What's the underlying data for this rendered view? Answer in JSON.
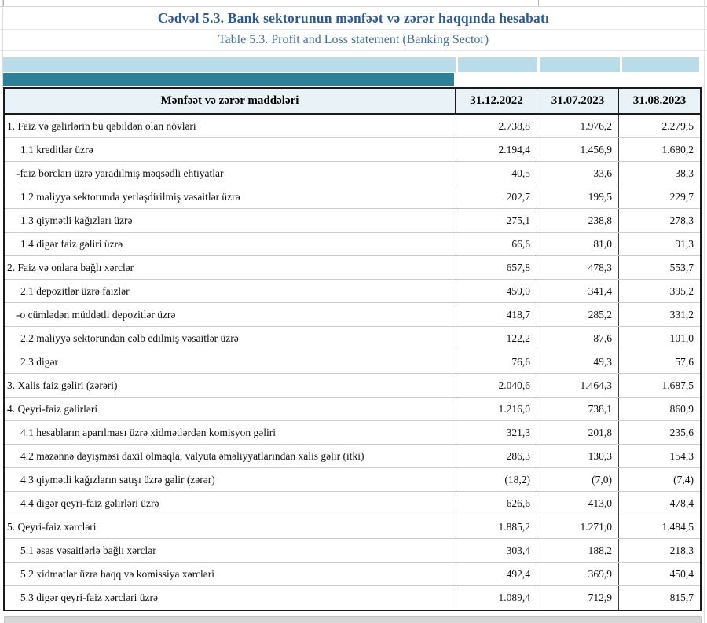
{
  "title": "Cədvəl 5.3. Bank sektorunun mənfəət və zərər haqqında hesabatı",
  "subtitle": "Table 5.3. Profit and Loss statement (Banking Sector)",
  "colors": {
    "title_blue": "#2e5c8e",
    "subtitle_blue": "#41709e",
    "band_light_blue": "#b9dce8",
    "band_teal": "#2e8099",
    "header_bg": "#e9f2f6",
    "scrollbar_gray": "#d7d7d7"
  },
  "table": {
    "header": {
      "label": "Mənfəət və zərər maddələri",
      "columns": [
        "31.12.2022",
        "31.07.2023",
        "31.08.2023"
      ]
    },
    "rows": [
      {
        "label": "1. Faiz və gəlirlərin bu qəbildən olan növləri",
        "indent": "top",
        "values": [
          "2.738,8",
          "1.976,2",
          "2.279,5"
        ]
      },
      {
        "label": "1.1 kreditlər üzrə",
        "indent": "sub",
        "values": [
          "2.194,4",
          "1.456,9",
          "1.680,2"
        ]
      },
      {
        "label": "-faiz borcları üzrə yaradılmış məqsədli ehtiyatlar",
        "indent": "dash",
        "values": [
          "40,5",
          "33,6",
          "38,3"
        ]
      },
      {
        "label": "1.2 maliyyə sektorunda yerləşdirilmiş vəsaitlər üzrə",
        "indent": "sub",
        "values": [
          "202,7",
          "199,5",
          "229,7"
        ]
      },
      {
        "label": "1.3 qiymətli kağızları üzrə",
        "indent": "sub",
        "values": [
          "275,1",
          "238,8",
          "278,3"
        ]
      },
      {
        "label": "1.4 digər faiz gəliri üzrə",
        "indent": "sub",
        "values": [
          "66,6",
          "81,0",
          "91,3"
        ]
      },
      {
        "label": "2. Faiz və onlara bağlı xərclər",
        "indent": "top",
        "values": [
          "657,8",
          "478,3",
          "553,7"
        ]
      },
      {
        "label": "2.1 depozitlər üzrə faizlər",
        "indent": "sub",
        "values": [
          "459,0",
          "341,4",
          "395,2"
        ]
      },
      {
        "label": "-o cümlədən müddətli depozitlər üzrə",
        "indent": "dash",
        "values": [
          "418,7",
          "285,2",
          "331,2"
        ]
      },
      {
        "label": "2.2 maliyyə sektorundan cəlb edilmiş vəsaitlər üzrə",
        "indent": "sub",
        "values": [
          "122,2",
          "87,6",
          "101,0"
        ]
      },
      {
        "label": "2.3 digər",
        "indent": "sub",
        "values": [
          "76,6",
          "49,3",
          "57,6"
        ]
      },
      {
        "label": "3. Xalis faiz gəliri (zərəri)",
        "indent": "top",
        "values": [
          "2.040,6",
          "1.464,3",
          "1.687,5"
        ]
      },
      {
        "label": "4. Qeyri-faiz gəlirləri",
        "indent": "top",
        "values": [
          "1.216,0",
          "738,1",
          "860,9"
        ]
      },
      {
        "label": "4.1 hesabların aparılması üzrə xidmətlərdən komisyon gəliri",
        "indent": "sub",
        "values": [
          "321,3",
          "201,8",
          "235,6"
        ]
      },
      {
        "label": "4.2 məzənnə dəyişməsi daxil olmaqla, valyuta əməliyyatlarından xalis gəlir (itki)",
        "indent": "sub",
        "values": [
          "286,3",
          "130,3",
          "154,3"
        ]
      },
      {
        "label": "4.3 qiymətli kağızların satışı üzrə gəlir (zərər)",
        "indent": "sub",
        "values": [
          "(18,2)",
          "(7,0)",
          "(7,4)"
        ]
      },
      {
        "label": "4.4 digər qeyri-faiz gəlirləri üzrə",
        "indent": "sub",
        "values": [
          "626,6",
          "413,0",
          "478,4"
        ]
      },
      {
        "label": "5. Qeyri-faiz xərcləri",
        "indent": "top",
        "values": [
          "1.885,2",
          "1.271,0",
          "1.484,5"
        ]
      },
      {
        "label": "5.1 əsas vəsaitlərlə bağlı xərclər",
        "indent": "sub",
        "values": [
          "303,4",
          "188,2",
          "218,3"
        ]
      },
      {
        "label": "5.2 xidmətlər üzrə haqq və komissiya xərcləri",
        "indent": "sub",
        "values": [
          "492,4",
          "369,9",
          "450,4"
        ]
      },
      {
        "label": "5.3 digər qeyri-faiz xərcləri üzrə",
        "indent": "sub",
        "values": [
          "1.089,4",
          "712,9",
          "815,7"
        ]
      }
    ]
  }
}
